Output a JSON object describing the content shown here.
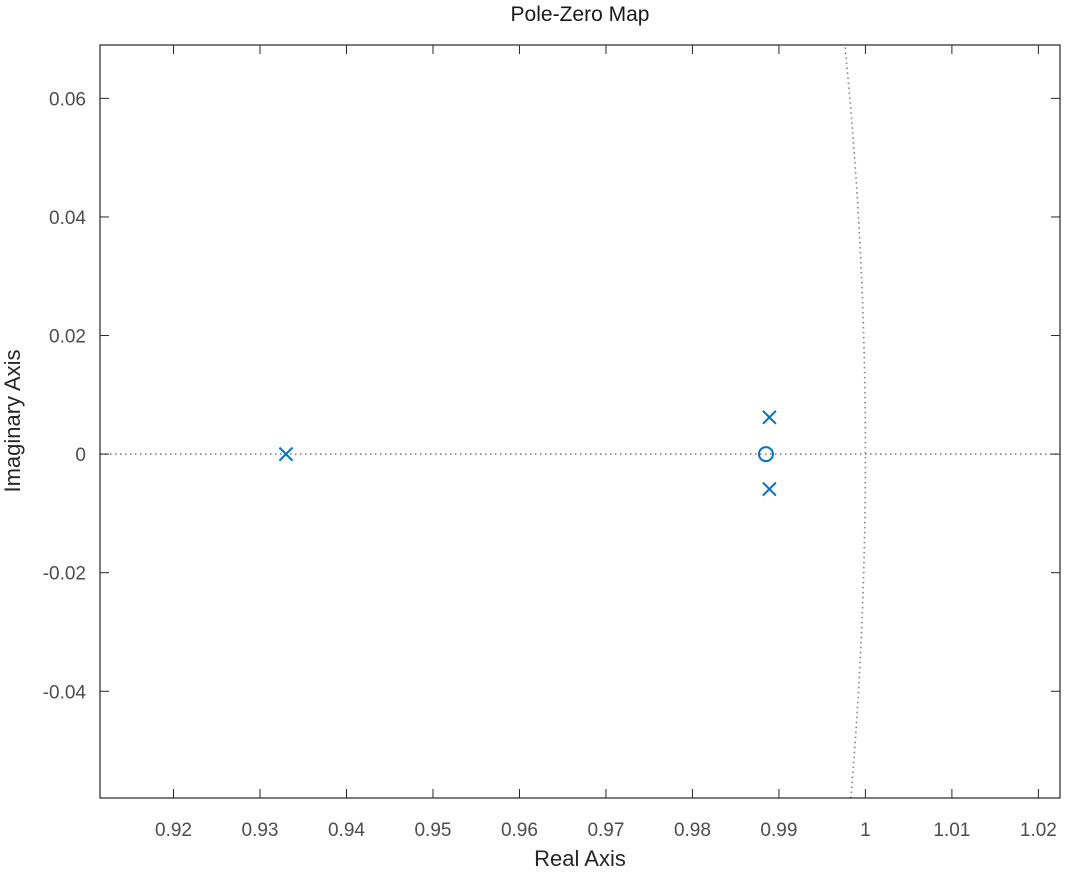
{
  "chart_data": {
    "type": "scatter",
    "title": "Pole-Zero Map",
    "xlabel": "Real Axis",
    "ylabel": "Imaginary Axis",
    "xlim": [
      0.9115,
      1.0225
    ],
    "ylim": [
      -0.058,
      0.069
    ],
    "xticks": [
      0.92,
      0.93,
      0.94,
      0.95,
      0.96,
      0.97,
      0.98,
      0.99,
      1,
      1.01,
      1.02
    ],
    "xtick_labels": [
      "0.92",
      "0.93",
      "0.94",
      "0.95",
      "0.96",
      "0.97",
      "0.98",
      "0.99",
      "1",
      "1.01",
      "1.02"
    ],
    "yticks": [
      0.06,
      0.04,
      0.02,
      0,
      -0.02,
      -0.04
    ],
    "ytick_labels": [
      "0.06",
      "0.04",
      "0.02",
      "0",
      "-0.02",
      "-0.04"
    ],
    "grid": false,
    "marker_color": "#0072BD",
    "reference_line_color": "#808080",
    "series": [
      {
        "kind": "pole",
        "marker": "x",
        "points": [
          {
            "x": 0.933,
            "y": 0.0
          },
          {
            "x": 0.9889,
            "y": 0.0062
          },
          {
            "x": 0.9889,
            "y": -0.0059
          }
        ]
      },
      {
        "kind": "zero",
        "marker": "o",
        "points": [
          {
            "x": 0.9885,
            "y": 0.0
          }
        ]
      }
    ],
    "reference_lines": [
      "real-axis",
      "unit-circle"
    ]
  }
}
